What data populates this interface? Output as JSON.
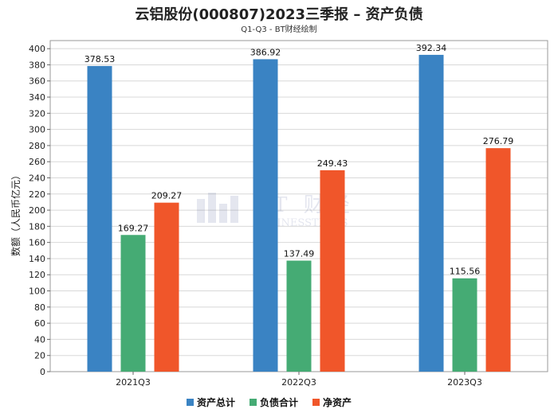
{
  "chart_data": {
    "type": "bar",
    "title": "云铝股份(000807)2023三季报 – 资产负债",
    "subtitle": "Q1-Q3 - BT财经绘制",
    "xlabel": "",
    "ylabel": "数额（人民币亿元）",
    "categories": [
      "2021Q3",
      "2022Q3",
      "2023Q3"
    ],
    "series": [
      {
        "name": "资产总计",
        "values": [
          378.53,
          386.92,
          392.34
        ],
        "color": "#3a83c3"
      },
      {
        "name": "负债合计",
        "values": [
          169.27,
          137.49,
          115.56
        ],
        "color": "#45ab74"
      },
      {
        "name": "净资产",
        "values": [
          209.27,
          249.43,
          276.79
        ],
        "color": "#f0562a"
      }
    ],
    "ylim": [
      0,
      410
    ],
    "yticks": [
      0,
      20,
      40,
      60,
      80,
      100,
      120,
      140,
      160,
      180,
      200,
      220,
      240,
      260,
      280,
      300,
      320,
      340,
      360,
      380,
      400
    ],
    "grid": true,
    "legend_position": "bottom-center",
    "watermark": {
      "brand": "BT 财经",
      "sub": "BUSINESSTIMES"
    }
  }
}
